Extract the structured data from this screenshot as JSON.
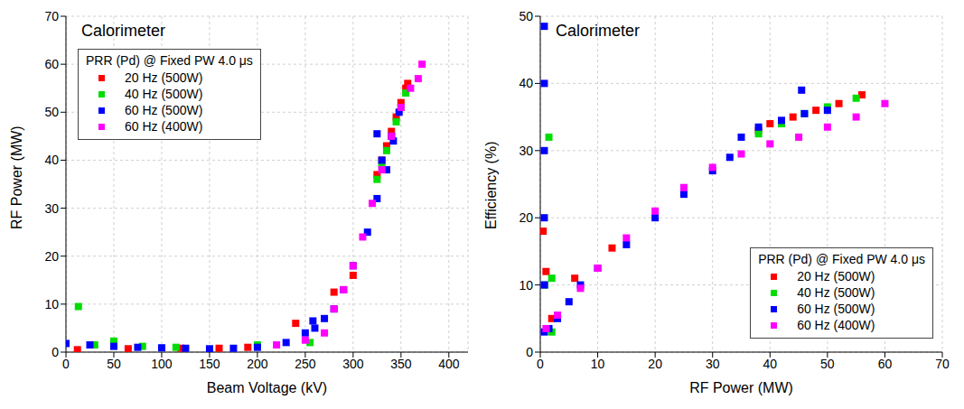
{
  "chart_data": [
    {
      "type": "scatter",
      "title": "Calorimeter",
      "legend_title": "PRR (Pd) @ Fixed PW 4.0 μs",
      "x_label": "Beam Voltage (kV)",
      "y_label": "RF Power (MW)",
      "xlim": [
        0,
        420
      ],
      "xticks": [
        0,
        50,
        100,
        150,
        200,
        250,
        300,
        350,
        400
      ],
      "ylim": [
        0,
        70
      ],
      "yticks": [
        0,
        10,
        20,
        30,
        40,
        50,
        60,
        70
      ],
      "grid": true,
      "legend": "upper left",
      "series": [
        {
          "name": "20 Hz (500W)",
          "color": "#ff0000",
          "marker": "square",
          "x": [
            12,
            65,
            120,
            160,
            190,
            240,
            280,
            300,
            325,
            330,
            335,
            340,
            345,
            350,
            355,
            357
          ],
          "values": [
            0.5,
            0.7,
            0.8,
            0.8,
            1.0,
            6.0,
            12.5,
            16,
            37,
            40,
            43,
            46,
            49,
            52,
            55,
            56
          ]
        },
        {
          "name": "40 Hz (500W)",
          "color": "#00dd00",
          "marker": "square",
          "x": [
            13,
            30,
            50,
            80,
            115,
            200,
            255,
            325,
            330,
            335,
            340,
            345,
            350,
            355
          ],
          "values": [
            9.5,
            1.5,
            2.3,
            1.2,
            1.0,
            1.5,
            2,
            36,
            39,
            42,
            45,
            48,
            51,
            54
          ]
        },
        {
          "name": "60 Hz (500W)",
          "color": "#0000ff",
          "marker": "square",
          "x": [
            0,
            25,
            50,
            75,
            100,
            125,
            150,
            175,
            200,
            230,
            250,
            258,
            260,
            270,
            280,
            290,
            300,
            315,
            325,
            325,
            330,
            335,
            340,
            342,
            348
          ],
          "values": [
            1.8,
            1.5,
            1.2,
            1.0,
            0.9,
            0.8,
            0.7,
            0.8,
            1.0,
            2,
            4,
            6.5,
            5,
            7,
            9,
            13,
            18,
            25,
            32,
            45.5,
            40,
            38,
            45,
            44,
            50
          ]
        },
        {
          "name": "60 Hz (400W)",
          "color": "#ff00ff",
          "marker": "square",
          "x": [
            220,
            250,
            270,
            280,
            290,
            300,
            310,
            320,
            330,
            340,
            350,
            360,
            368,
            372
          ],
          "values": [
            1.5,
            2.5,
            4,
            9,
            13,
            18,
            24,
            31,
            38,
            45,
            51,
            55,
            57,
            60
          ]
        }
      ]
    },
    {
      "type": "scatter",
      "title": "Calorimeter",
      "legend_title": "PRR (Pd) @ Fixed PW 4.0 μs",
      "x_label": "RF Power (MW)",
      "y_label": "Efficiency (%)",
      "xlim": [
        0,
        70
      ],
      "xticks": [
        0,
        10,
        20,
        30,
        40,
        50,
        60,
        70
      ],
      "ylim": [
        0,
        50
      ],
      "yticks": [
        0,
        10,
        20,
        30,
        40,
        50
      ],
      "grid": true,
      "legend": "lower right",
      "series": [
        {
          "name": "20 Hz (500W)",
          "color": "#ff0000",
          "marker": "square",
          "x": [
            0.5,
            1,
            2,
            6,
            12.5,
            38,
            40,
            44,
            48,
            52,
            56
          ],
          "values": [
            18,
            12,
            5,
            11,
            15.5,
            33,
            34,
            35,
            36,
            37,
            38.3
          ]
        },
        {
          "name": "40 Hz (500W)",
          "color": "#00dd00",
          "marker": "square",
          "x": [
            0.8,
            1.5,
            2,
            2,
            38,
            42,
            46,
            50,
            55
          ],
          "values": [
            10,
            32,
            3,
            11,
            32.5,
            34,
            35.5,
            36.5,
            37.8
          ]
        },
        {
          "name": "60 Hz (500W)",
          "color": "#0000ff",
          "marker": "square",
          "x": [
            0.7,
            0.7,
            0.7,
            0.7,
            0.7,
            0.7,
            1.5,
            3,
            5,
            7,
            10,
            15,
            20,
            25,
            30,
            33,
            35,
            38,
            42,
            45.5,
            46,
            50
          ],
          "values": [
            3,
            10,
            20,
            30,
            40,
            48.5,
            3.5,
            5,
            7.5,
            10,
            12.5,
            16,
            20,
            23.5,
            27,
            29,
            32,
            33.5,
            34.5,
            39,
            35.5,
            36
          ]
        },
        {
          "name": "60 Hz (400W)",
          "color": "#ff00ff",
          "marker": "square",
          "x": [
            1,
            3,
            7,
            10,
            15,
            20,
            25,
            30,
            35,
            40,
            45,
            50,
            55,
            60
          ],
          "values": [
            3.5,
            5.5,
            9.5,
            12.5,
            17,
            21,
            24.5,
            27.5,
            29.5,
            31,
            32,
            33.5,
            35,
            37
          ]
        }
      ]
    }
  ]
}
